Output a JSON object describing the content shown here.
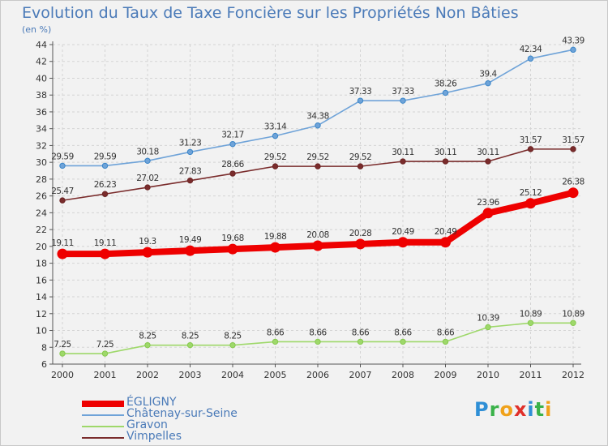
{
  "title": "Evolution du Taux de Taxe Foncière sur les Propriétés Non Bâties",
  "subtitle": "(en %)",
  "logo": {
    "text": "Proxiti",
    "letters": [
      "P",
      "r",
      "o",
      "x",
      "i",
      "t",
      "i"
    ],
    "colors": [
      "#2f8fd6",
      "#3bb24a",
      "#f0a21b",
      "#e0302a",
      "#2f8fd6",
      "#3bb24a",
      "#f0a21b"
    ]
  },
  "chart_data": {
    "type": "line",
    "title": "Evolution du Taux de Taxe Foncière sur les Propriétés Non Bâties",
    "ylabel": "(en %)",
    "xlabel": "",
    "x": [
      "2000",
      "2001",
      "2002",
      "2003",
      "2004",
      "2005",
      "2006",
      "2007",
      "2008",
      "2009",
      "2010",
      "2011",
      "2012"
    ],
    "ylim": [
      6,
      44
    ],
    "yticks": [
      6,
      8,
      10,
      12,
      14,
      16,
      18,
      20,
      22,
      24,
      26,
      28,
      30,
      32,
      34,
      36,
      38,
      40,
      42,
      44
    ],
    "grid": true,
    "legend_position": "bottom-left",
    "series": [
      {
        "name": "Châtenay-sur-Seine",
        "color": "#6fa3d8",
        "marker_color": "#3a86c9",
        "values": [
          29.59,
          29.59,
          30.18,
          31.23,
          32.17,
          33.14,
          34.38,
          37.33,
          37.33,
          38.26,
          39.4,
          42.34,
          43.39
        ],
        "labels": [
          "29.59",
          "29.59",
          "30.18",
          "31.23",
          "32.17",
          "33.14",
          "34.38",
          "37.33",
          "37.33",
          "38.26",
          "39.4",
          "42.34",
          "43.39"
        ]
      },
      {
        "name": "Vimpelles",
        "color": "#7a2c2c",
        "marker_color": "#6b2424",
        "values": [
          25.47,
          26.23,
          27.02,
          27.83,
          28.66,
          29.52,
          29.52,
          29.52,
          30.11,
          30.11,
          30.11,
          31.57,
          31.57
        ],
        "labels": [
          "25.47",
          "26.23",
          "27.02",
          "27.83",
          "28.66",
          "29.52",
          "29.52",
          "29.52",
          "30.11",
          "30.11",
          "30.11",
          "31.57",
          "31.57"
        ]
      },
      {
        "name": "ÉGLIGNY",
        "color": "#ee0000",
        "marker_color": "#ee0000",
        "values": [
          19.11,
          19.11,
          19.3,
          19.49,
          19.68,
          19.88,
          20.08,
          20.28,
          20.49,
          20.49,
          23.96,
          25.12,
          26.38
        ],
        "labels": [
          "19.11",
          "19.11",
          "19.3",
          "19.49",
          "19.68",
          "19.88",
          "20.08",
          "20.28",
          "20.49",
          "20.49",
          "23.96",
          "25.12",
          "26.38"
        ]
      },
      {
        "name": "Gravon",
        "color": "#9ed86a",
        "marker_color": "#86c94e",
        "values": [
          7.25,
          7.25,
          8.25,
          8.25,
          8.25,
          8.66,
          8.66,
          8.66,
          8.66,
          8.66,
          10.39,
          10.89,
          10.89
        ],
        "labels": [
          "7.25",
          "7.25",
          "8.25",
          "8.25",
          "8.25",
          "8.66",
          "8.66",
          "8.66",
          "8.66",
          "8.66",
          "10.39",
          "10.89",
          "10.89"
        ]
      }
    ],
    "legend": [
      {
        "name": "ÉGLIGNY",
        "color": "#ee0000"
      },
      {
        "name": "Châtenay-sur-Seine",
        "color": "#6fa3d8"
      },
      {
        "name": "Gravon",
        "color": "#9ed86a"
      },
      {
        "name": "Vimpelles",
        "color": "#7a2c2c"
      }
    ]
  }
}
